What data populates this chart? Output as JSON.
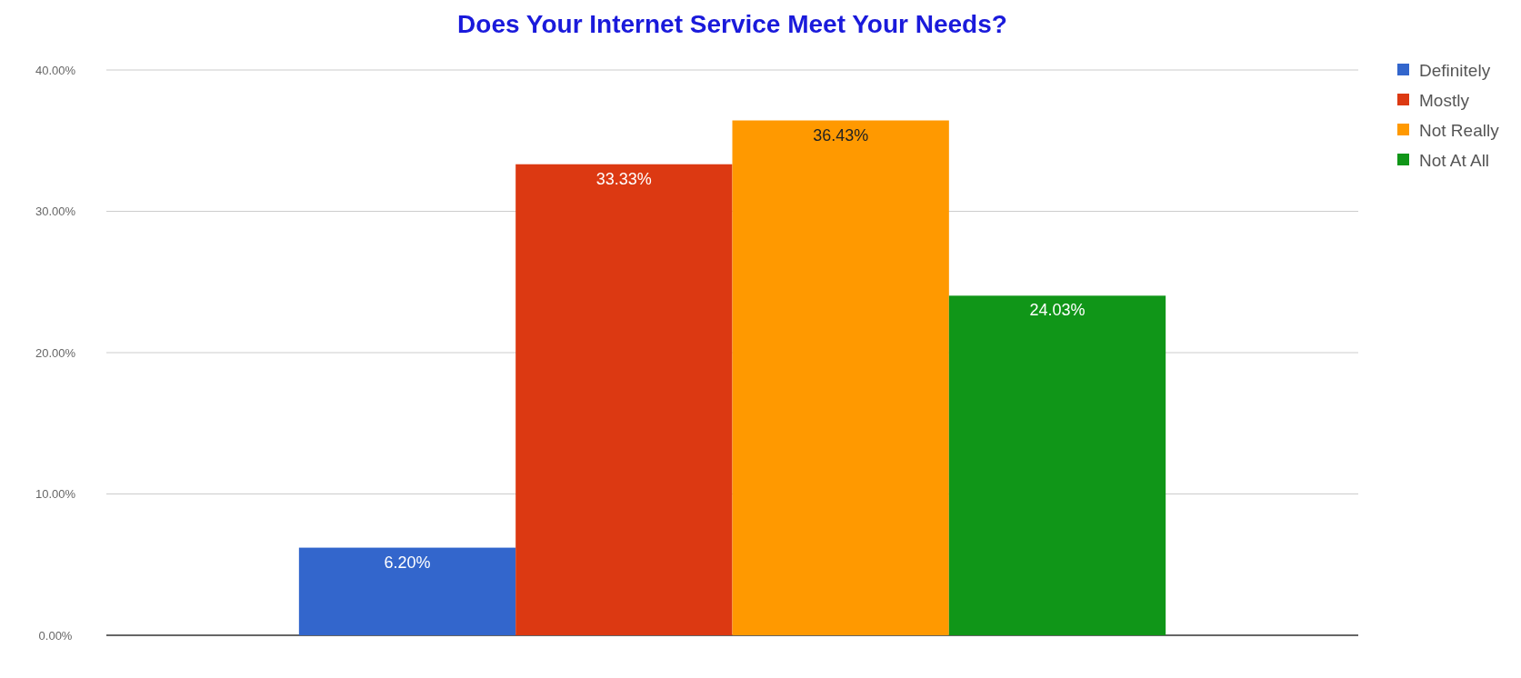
{
  "chart_data": {
    "type": "bar",
    "title": "Does Your Internet Service Meet Your Needs?",
    "categories": [
      null
    ],
    "series": [
      {
        "name": "Definitely",
        "color": "#3366cc",
        "values": [
          6.2
        ]
      },
      {
        "name": "Mostly",
        "color": "#dc3912",
        "values": [
          33.33
        ]
      },
      {
        "name": "Not Really",
        "color": "#ff9900",
        "values": [
          36.43
        ]
      },
      {
        "name": "Not At All",
        "color": "#109618",
        "values": [
          24.03
        ]
      }
    ],
    "ylim": [
      0,
      40
    ],
    "yticks": [
      {
        "value": 0,
        "label": "0.00%"
      },
      {
        "value": 10,
        "label": "10.00%"
      },
      {
        "value": 20,
        "label": "20.00%"
      },
      {
        "value": 30,
        "label": "30.00%"
      },
      {
        "value": 40,
        "label": "40.00%"
      }
    ],
    "value_labels": [
      "6.20%",
      "33.33%",
      "36.43%",
      "24.03%"
    ],
    "grid": "y",
    "legend": "top right"
  }
}
